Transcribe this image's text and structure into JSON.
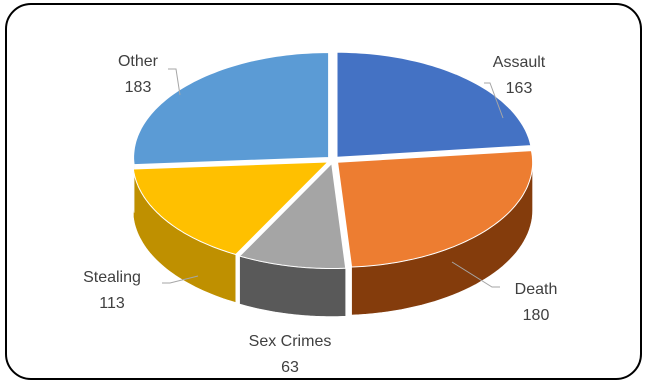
{
  "chart_data": {
    "type": "pie",
    "style": "3d-exploded",
    "title": "",
    "slices": [
      {
        "label": "Assault",
        "value": 163,
        "color": "#4472C4",
        "side_color": "#2F528F"
      },
      {
        "label": "Death",
        "value": 180,
        "color": "#ED7D31",
        "side_color": "#843C0C"
      },
      {
        "label": "Sex Crimes",
        "value": 63,
        "color": "#A5A5A5",
        "side_color": "#595959"
      },
      {
        "label": "Stealing",
        "value": 113,
        "color": "#FFC000",
        "side_color": "#BF9000"
      },
      {
        "label": "Other",
        "value": 183,
        "color": "#5B9BD5",
        "side_color": "#2E75B6"
      }
    ],
    "legend": "none",
    "data_labels": "category-and-value"
  }
}
